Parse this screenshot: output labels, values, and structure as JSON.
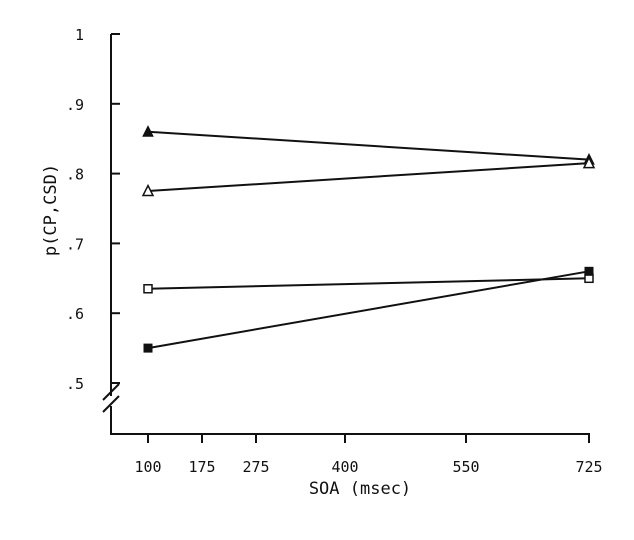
{
  "chart_data": {
    "type": "line",
    "xlabel": "SOA (msec)",
    "ylabel": "p(CP,CSD)",
    "x_ticks": [
      100,
      175,
      275,
      400,
      550,
      725
    ],
    "y_ticks": [
      ".5",
      ".6",
      ".7",
      ".8",
      ".9",
      "1"
    ],
    "ylim": [
      0.5,
      1.0
    ],
    "axis_break": "y-axis below .5",
    "grid": false,
    "legend": "none",
    "series": [
      {
        "marker": "filled-triangle",
        "x": [
          100,
          725
        ],
        "values": [
          0.86,
          0.82
        ]
      },
      {
        "marker": "open-triangle",
        "x": [
          100,
          725
        ],
        "values": [
          0.775,
          0.815
        ]
      },
      {
        "marker": "open-square",
        "x": [
          100,
          725
        ],
        "values": [
          0.635,
          0.65
        ]
      },
      {
        "marker": "filled-square",
        "x": [
          100,
          725
        ],
        "values": [
          0.55,
          0.66
        ]
      }
    ]
  }
}
